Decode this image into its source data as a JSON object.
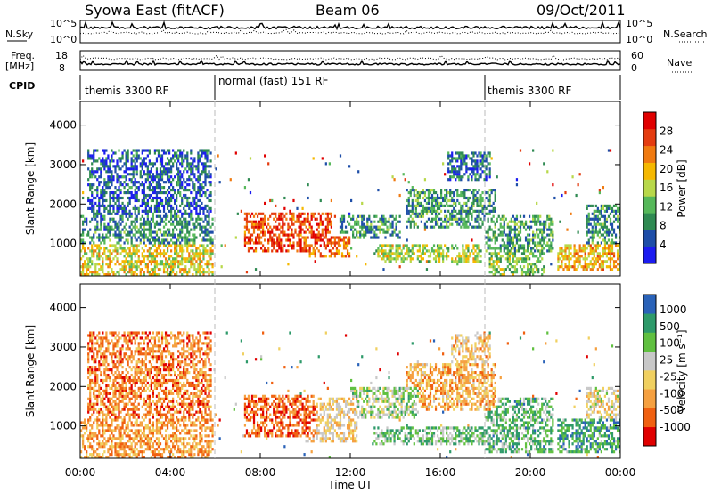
{
  "header": {
    "station": "Syowa East (fitACF)",
    "beam": "Beam 06",
    "date": "09/Oct/2011"
  },
  "housekeeping": {
    "nsky_label": "N.Sky",
    "nsky_ticks": [
      "10^5",
      "10^0"
    ],
    "nsearch_label": "N.Search",
    "nsearch_ticks": [
      "10^5",
      "10^0"
    ],
    "freq_label": "Freq.",
    "freq_unit": "[MHz]",
    "freq_ticks": [
      "18",
      "8"
    ],
    "nave_label": "Nave",
    "nave_ticks": [
      "60",
      "0"
    ],
    "cpid_label": "CPID",
    "cpid_segments": [
      {
        "label": "themis 3300 RF",
        "start": "00:00",
        "end": "06:00"
      },
      {
        "label": "normal (fast) 151 RF",
        "start": "06:00",
        "end": "18:00"
      },
      {
        "label": "themis 3300 RF",
        "start": "18:00",
        "end": "24:00"
      }
    ]
  },
  "xaxis": {
    "label": "Time UT",
    "ticks": [
      "00:00",
      "04:00",
      "08:00",
      "12:00",
      "16:00",
      "20:00",
      "00:00"
    ]
  },
  "chart_data": [
    {
      "type": "heatmap",
      "title": "",
      "xlabel": "Time UT",
      "ylabel": "Slant Range [km]",
      "xlim": [
        0,
        24
      ],
      "ylim": [
        180,
        4600
      ],
      "yticks": [
        "1000",
        "2000",
        "3000",
        "4000"
      ],
      "colorbar": {
        "label": "Power [dB]",
        "range": [
          0,
          32
        ],
        "ticks": [
          "4",
          "8",
          "12",
          "16",
          "20",
          "24",
          "28"
        ],
        "colors": [
          "#1c1cf0",
          "#1e4ea8",
          "#2f8a52",
          "#56b85a",
          "#b8d84a",
          "#f5b800",
          "#f07a10",
          "#e43c10",
          "#e00000"
        ]
      },
      "blobs": [
        {
          "t0": 0.0,
          "t1": 5.9,
          "r0": 200,
          "r1": 1000,
          "level": 0.55
        },
        {
          "t0": 0.0,
          "t1": 5.9,
          "r0": 1000,
          "r1": 1700,
          "level": 0.28
        },
        {
          "t0": 0.3,
          "t1": 5.8,
          "r0": 1700,
          "r1": 3400,
          "level": 0.18
        },
        {
          "t0": 7.3,
          "t1": 11.2,
          "r0": 800,
          "r1": 1800,
          "level": 0.82
        },
        {
          "t0": 10.0,
          "t1": 12.0,
          "r0": 650,
          "r1": 1200,
          "level": 0.72
        },
        {
          "t0": 11.5,
          "t1": 14.2,
          "r0": 1100,
          "r1": 1700,
          "level": 0.3
        },
        {
          "t0": 13.2,
          "t1": 17.8,
          "r0": 500,
          "r1": 1000,
          "level": 0.5
        },
        {
          "t0": 14.5,
          "t1": 18.5,
          "r0": 1400,
          "r1": 2400,
          "level": 0.3
        },
        {
          "t0": 16.3,
          "t1": 18.2,
          "r0": 2600,
          "r1": 3300,
          "level": 0.22
        },
        {
          "t0": 18.0,
          "t1": 21.0,
          "r0": 800,
          "r1": 1700,
          "level": 0.33
        },
        {
          "t0": 18.2,
          "t1": 20.6,
          "r0": 200,
          "r1": 800,
          "level": 0.42
        },
        {
          "t0": 21.2,
          "t1": 24.0,
          "r0": 300,
          "r1": 1000,
          "level": 0.62
        },
        {
          "t0": 22.5,
          "t1": 24.0,
          "r0": 1000,
          "r1": 2000,
          "level": 0.3
        }
      ]
    },
    {
      "type": "heatmap",
      "title": "",
      "xlabel": "Time UT",
      "ylabel": "Slant Range [km]",
      "xlim": [
        0,
        24
      ],
      "ylim": [
        180,
        4600
      ],
      "yticks": [
        "1000",
        "2000",
        "3000",
        "4000"
      ],
      "colorbar": {
        "label": "Velocity [m s⁻¹]",
        "range": [
          -1000,
          1000
        ],
        "ticks": [
          "1000",
          "500",
          "100",
          "25",
          "-25",
          "-100",
          "-500",
          "-1000"
        ],
        "colors": [
          "#e00000",
          "#f06010",
          "#f5a040",
          "#f0d060",
          "#c8c8c8",
          "#60c040",
          "#2e9a6a",
          "#2a62b8"
        ]
      },
      "blobs": [
        {
          "t0": 0.0,
          "t1": 5.9,
          "r0": 200,
          "r1": 1200,
          "level": 0.3
        },
        {
          "t0": 0.3,
          "t1": 5.8,
          "r0": 1200,
          "r1": 3400,
          "level": 0.25
        },
        {
          "t0": 7.3,
          "t1": 10.5,
          "r0": 700,
          "r1": 1800,
          "level": 0.2
        },
        {
          "t0": 10.0,
          "t1": 12.3,
          "r0": 600,
          "r1": 1700,
          "level": 0.45
        },
        {
          "t0": 12.0,
          "t1": 15.0,
          "r0": 1200,
          "r1": 2000,
          "level": 0.62
        },
        {
          "t0": 13.0,
          "t1": 18.0,
          "r0": 500,
          "r1": 1000,
          "level": 0.7
        },
        {
          "t0": 14.5,
          "t1": 18.5,
          "r0": 1400,
          "r1": 2600,
          "level": 0.35
        },
        {
          "t0": 16.5,
          "t1": 18.2,
          "r0": 2600,
          "r1": 3300,
          "level": 0.4
        },
        {
          "t0": 18.0,
          "t1": 21.0,
          "r0": 300,
          "r1": 1700,
          "level": 0.72
        },
        {
          "t0": 21.2,
          "t1": 24.0,
          "r0": 300,
          "r1": 1200,
          "level": 0.78
        },
        {
          "t0": 22.5,
          "t1": 24.0,
          "r0": 1200,
          "r1": 2000,
          "level": 0.5
        }
      ]
    }
  ]
}
